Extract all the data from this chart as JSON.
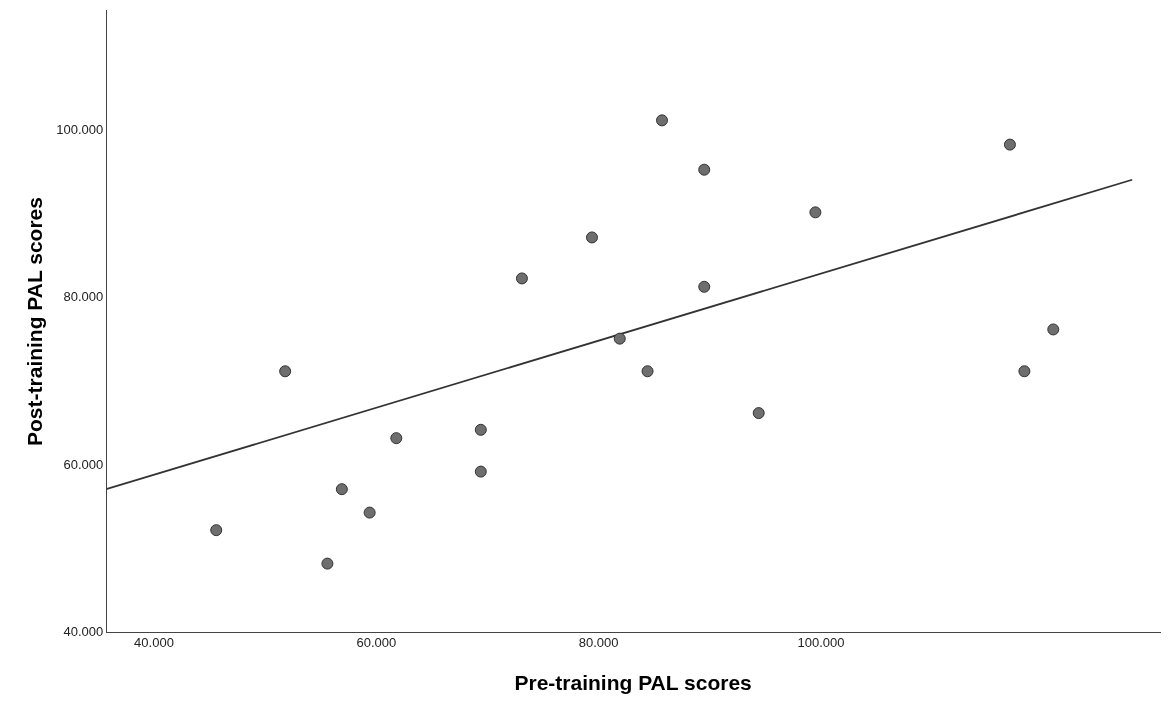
{
  "chart_data": {
    "type": "scatter",
    "xlabel": "Pre-training PAL scores",
    "ylabel": "Post-training PAL scores",
    "xlim": [
      35.7,
      130.5
    ],
    "ylim": [
      40,
      114.3
    ],
    "xticks": [
      {
        "value": 40,
        "label": "40.000"
      },
      {
        "value": 60,
        "label": "60.000"
      },
      {
        "value": 80,
        "label": "80.000"
      },
      {
        "value": 100,
        "label": "100.000"
      }
    ],
    "yticks": [
      {
        "value": 40,
        "label": "40.000"
      },
      {
        "value": 60,
        "label": "60.000"
      },
      {
        "value": 80,
        "label": "80.000"
      },
      {
        "value": 100,
        "label": "100.000"
      }
    ],
    "grid": false,
    "legend": false,
    "marker": "circle",
    "series": [
      {
        "type": "scatter",
        "color": "#6e6e6e",
        "x": [
          45.6,
          51.8,
          55.6,
          56.9,
          59.4,
          61.8,
          69.4,
          69.4,
          73.1,
          79.4,
          81.9,
          84.4,
          85.7,
          89.5,
          89.5,
          94.4,
          99.5,
          117.0,
          118.3,
          120.9
        ],
        "values": [
          52.2,
          71.2,
          48.2,
          57.1,
          54.3,
          63.2,
          64.2,
          59.2,
          82.3,
          87.2,
          75.1,
          71.2,
          101.2,
          95.3,
          81.3,
          66.2,
          90.2,
          98.3,
          71.2,
          76.2
        ]
      },
      {
        "type": "line",
        "color": "#333333",
        "x": [
          35.7,
          128.0
        ],
        "values": [
          57.1,
          94.1
        ],
        "marker": "none",
        "line_style": "solid"
      }
    ]
  }
}
